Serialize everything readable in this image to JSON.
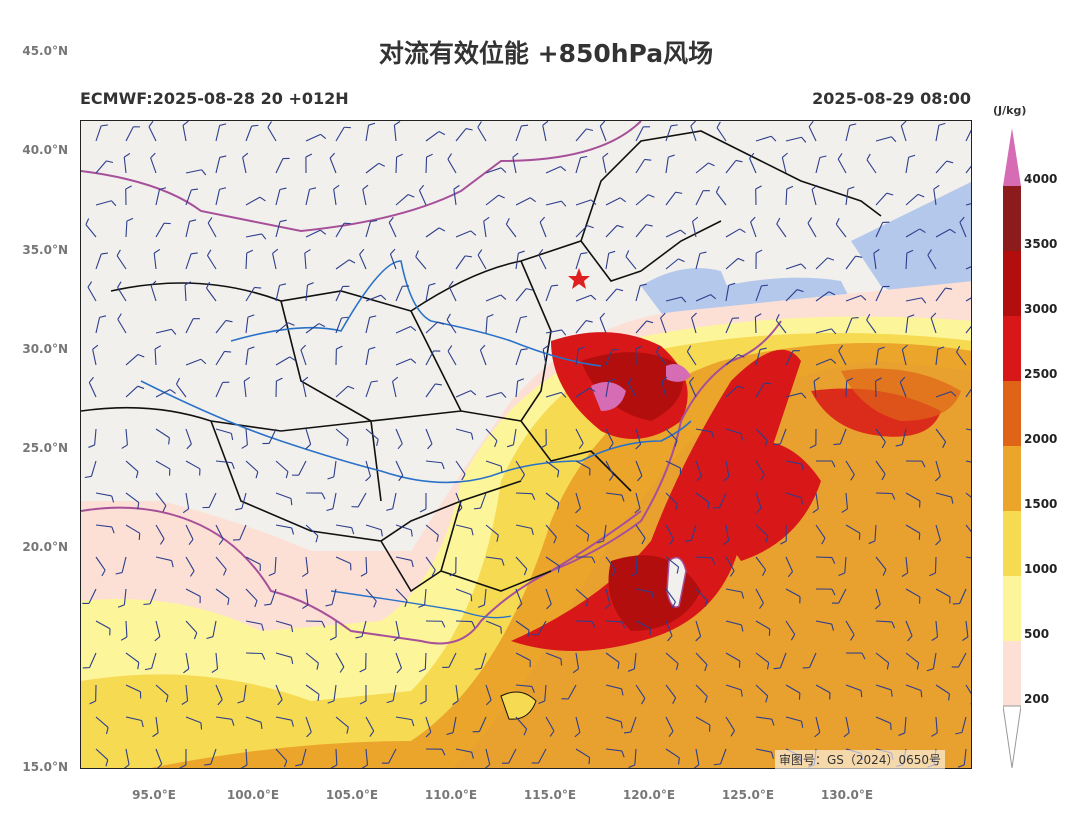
{
  "title": "对流有效位能 +850hPa风场",
  "subtitle_left": "ECMWF:2025-08-28 20 +012H",
  "subtitle_right": "2025-08-29 08:00",
  "approval_number": "审图号：GS（2024）0650号",
  "axes": {
    "lat_labels": [
      "45.0°N",
      "40.0°N",
      "35.0°N",
      "30.0°N",
      "25.0°N",
      "20.0°N",
      "15.0°N"
    ],
    "lon_labels": [
      "95.0°E",
      "100.0°E",
      "105.0°E",
      "110.0°E",
      "115.0°E",
      "120.0°E",
      "125.0°E",
      "130.0°E"
    ]
  },
  "legend": {
    "unit": "(J/kg)",
    "labels": [
      "4000",
      "3500",
      "3000",
      "2500",
      "2000",
      "1500",
      "1000",
      "500",
      "200"
    ],
    "colors": [
      "#d66db4",
      "#8c1c1c",
      "#b20e0e",
      "#d81818",
      "#e06418",
      "#eba52a",
      "#f5da52",
      "#fdf59a",
      "#fce0d6",
      "#ffffff"
    ]
  },
  "map_colors": {
    "land": "#f2f0ec",
    "sea": "#b4c8ec",
    "border": "#111111",
    "coast_intl": "#a7509a",
    "river": "#2a72c8",
    "wind": "#2d3e8c"
  }
}
